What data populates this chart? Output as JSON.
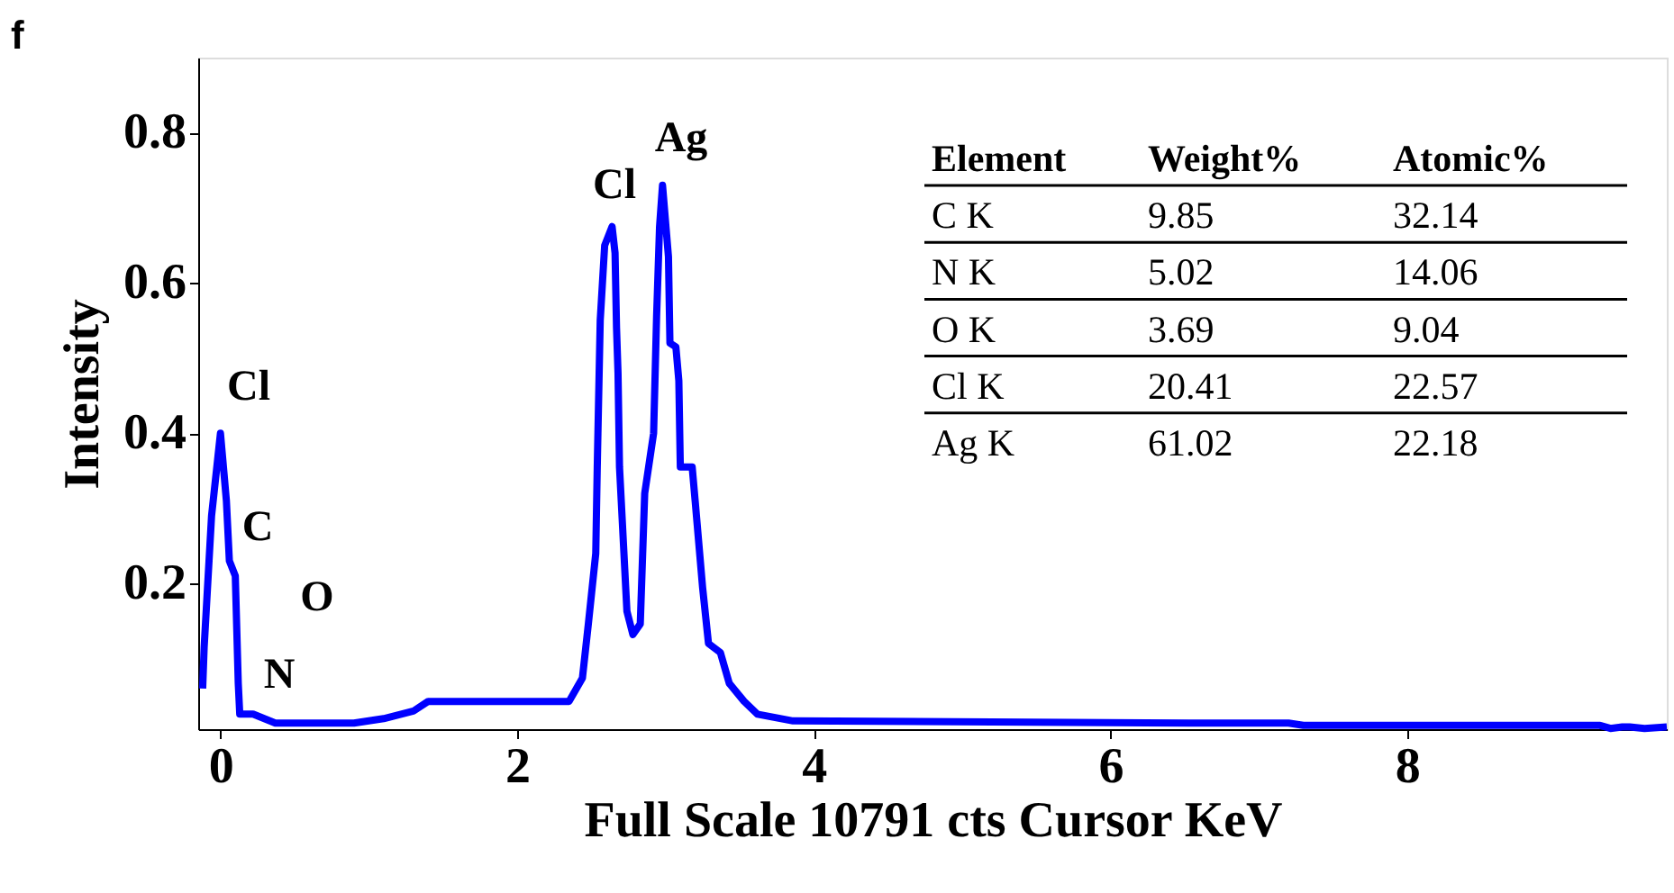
{
  "chart_data": {
    "type": "line",
    "xlabel": "Full Scale 10791 cts Cursor        KeV",
    "ylabel": "Intensity",
    "xlim": [
      -0.15,
      9.75
    ],
    "xticks": [
      0,
      2,
      4,
      6,
      8
    ],
    "ylim": [
      0.006,
      0.9
    ],
    "yticks": [
      0.2,
      0.4,
      0.6,
      0.8
    ],
    "grid": false,
    "marker": "none",
    "line_style": "solid",
    "series": [
      {
        "color": "#0000ff",
        "x": [
          -0.12,
          -0.11,
          -0.06,
          0.0,
          0.04,
          0.06,
          0.1,
          0.12,
          0.13,
          0.22,
          0.37,
          0.9,
          1.1,
          1.3,
          1.4,
          2.35,
          2.44,
          2.48,
          2.53,
          2.54,
          2.56,
          2.59,
          2.64,
          2.66,
          2.67,
          2.68,
          2.69,
          2.74,
          2.78,
          2.83,
          2.86,
          2.92,
          2.94,
          2.96,
          2.98,
          3.02,
          3.03,
          3.07,
          3.09,
          3.1,
          3.18,
          3.2,
          3.25,
          3.29,
          3.37,
          3.43,
          3.53,
          3.62,
          3.86,
          6.53,
          6.6,
          7.2,
          7.3,
          9.3,
          9.37,
          9.45,
          9.5,
          9.6,
          9.75
        ],
        "values": [
          0.06,
          0.115,
          0.29,
          0.4,
          0.31,
          0.23,
          0.21,
          0.067,
          0.026,
          0.026,
          0.014,
          0.014,
          0.02,
          0.03,
          0.043,
          0.043,
          0.074,
          0.146,
          0.24,
          0.355,
          0.55,
          0.65,
          0.675,
          0.64,
          0.54,
          0.48,
          0.355,
          0.163,
          0.132,
          0.146,
          0.32,
          0.4,
          0.555,
          0.675,
          0.73,
          0.635,
          0.52,
          0.515,
          0.47,
          0.355,
          0.355,
          0.31,
          0.195,
          0.12,
          0.108,
          0.067,
          0.043,
          0.026,
          0.017,
          0.014,
          0.014,
          0.014,
          0.011,
          0.011,
          0.007,
          0.009,
          0.009,
          0.007,
          0.009
        ]
      }
    ],
    "annotations": [
      "Cl",
      "C",
      "O",
      "N",
      "Cl",
      "Ag",
      "f",
      "Element",
      "Weight%",
      "Atomic%",
      "C K",
      "9.85",
      "32.14",
      "N K",
      "5.02",
      "14.06",
      "O K",
      "3.69",
      "9.04",
      "Cl K",
      "20.41",
      "22.57",
      "Ag K",
      "61.02",
      "22.18"
    ]
  }
}
